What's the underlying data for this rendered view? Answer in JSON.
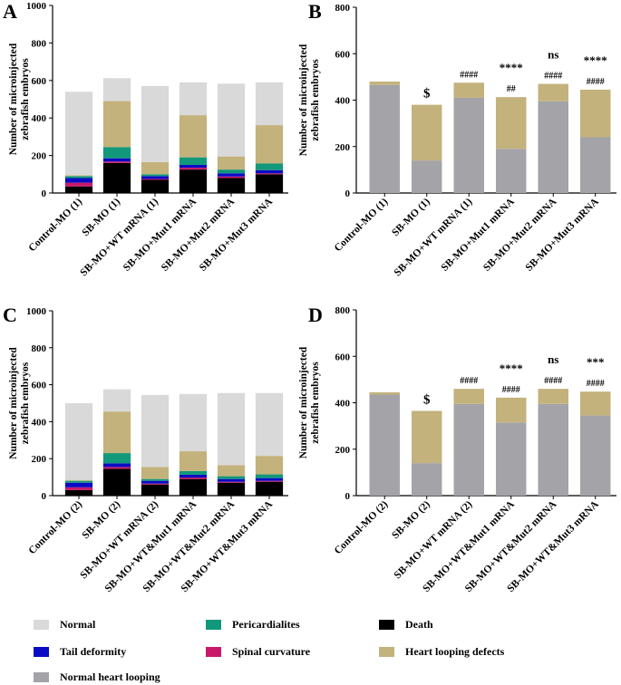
{
  "colors": {
    "normal": "#d9d9d9",
    "pericardialites": "#12987a",
    "death": "#000000",
    "tail_deformity": "#0b0bc4",
    "spinal_curvature": "#c8196a",
    "heart_looping_defects": "#c3b27c",
    "normal_heart_looping": "#a3a3a8"
  },
  "legend": {
    "normal": "Normal",
    "pericardialites": "Pericardialites",
    "death": "Death",
    "tail_deformity": "Tail deformity",
    "spinal_curvature": "Spinal curvature",
    "heart_looping_defects": "Heart looping defects",
    "normal_heart_looping": "Normal heart looping"
  },
  "chart_data": [
    {
      "panel": "A",
      "type": "bar",
      "stacked": true,
      "ylabel": "Number of microinjected zebrafish embryos",
      "ylim": [
        0,
        1000
      ],
      "yticks": [
        0,
        200,
        400,
        600,
        800,
        1000
      ],
      "categories": [
        "Control-MO (1)",
        "SB-MO (1)",
        "SB-MO+WT mRNA (1)",
        "SB-MO+Mut1 mRNA",
        "SB-MO+Mut2 mRNA",
        "SB-MO+Mut3 mRNA"
      ],
      "series": [
        {
          "name": "Death",
          "key": "death",
          "values": [
            35,
            160,
            70,
            125,
            80,
            100
          ]
        },
        {
          "name": "Spinal curvature",
          "key": "spinal_curvature",
          "values": [
            20,
            8,
            5,
            10,
            8,
            5
          ]
        },
        {
          "name": "Tail deformity",
          "key": "tail_deformity",
          "values": [
            25,
            17,
            15,
            15,
            17,
            17
          ]
        },
        {
          "name": "Pericardialites",
          "key": "pericardialites",
          "values": [
            10,
            60,
            10,
            40,
            20,
            35
          ]
        },
        {
          "name": "Heart looping defects",
          "key": "heart_looping_defects",
          "values": [
            5,
            245,
            65,
            225,
            70,
            205
          ]
        },
        {
          "name": "Normal",
          "key": "normal",
          "values": [
            445,
            122,
            405,
            175,
            388,
            228
          ]
        }
      ],
      "annotations_top": [],
      "annotations_bottom": []
    },
    {
      "panel": "B",
      "type": "bar",
      "stacked": true,
      "ylabel": "Number of microinjected zebrafish embryos",
      "ylim": [
        0,
        800
      ],
      "yticks": [
        0,
        200,
        400,
        600,
        800
      ],
      "categories": [
        "Control-MO (1)",
        "SB-MO (1)",
        "SB-MO+WT mRNA (1)",
        "SB-MO+Mut1 mRNA",
        "SB-MO+Mut2 mRNA",
        "SB-MO+Mut3 mRNA"
      ],
      "series": [
        {
          "name": "Normal heart looping",
          "key": "normal_heart_looping",
          "values": [
            465,
            140,
            410,
            190,
            395,
            240
          ]
        },
        {
          "name": "Heart looping defects",
          "key": "heart_looping_defects",
          "values": [
            15,
            240,
            65,
            223,
            75,
            205
          ]
        }
      ],
      "annotations_top": [
        "",
        "",
        "",
        "****",
        "ns",
        "****"
      ],
      "annotations_bottom": [
        "",
        "$",
        "####",
        "##",
        "####",
        "####"
      ]
    },
    {
      "panel": "C",
      "type": "bar",
      "stacked": true,
      "ylabel": "Number of microinjected zebrafish embryos",
      "ylim": [
        0,
        1000
      ],
      "yticks": [
        0,
        200,
        400,
        600,
        800,
        1000
      ],
      "categories": [
        "Control-MO (2)",
        "SB-MO (2)",
        "SB-MO+WT mRNA (2)",
        "SB-MO+WT&Mut1 mRNA",
        "SB-MO+WT&Mut2 mRNA",
        "SB-MO+WT&Mut3 mRNA"
      ],
      "series": [
        {
          "name": "Death",
          "key": "death",
          "values": [
            30,
            145,
            60,
            90,
            70,
            75
          ]
        },
        {
          "name": "Spinal curvature",
          "key": "spinal_curvature",
          "values": [
            15,
            10,
            5,
            8,
            5,
            5
          ]
        },
        {
          "name": "Tail deformity",
          "key": "tail_deformity",
          "values": [
            25,
            20,
            15,
            15,
            15,
            15
          ]
        },
        {
          "name": "Pericardialites",
          "key": "pericardialites",
          "values": [
            10,
            55,
            10,
            20,
            15,
            20
          ]
        },
        {
          "name": "Heart looping defects",
          "key": "heart_looping_defects",
          "values": [
            5,
            225,
            65,
            107,
            60,
            100
          ]
        },
        {
          "name": "Normal",
          "key": "normal",
          "values": [
            415,
            120,
            390,
            310,
            390,
            340
          ]
        }
      ],
      "annotations_top": [],
      "annotations_bottom": []
    },
    {
      "panel": "D",
      "type": "bar",
      "stacked": true,
      "ylabel": "Number of microinjected zebrafish embryos",
      "ylim": [
        0,
        800
      ],
      "yticks": [
        0,
        200,
        400,
        600,
        800
      ],
      "categories": [
        "Control-MO (2)",
        "SB-MO (2)",
        "SB-MO+WT mRNA (2)",
        "SB-MO+WT&Mut1 mRNA",
        "SB-MO+WT&Mut2 mRNA",
        "SB-MO+WT&Mut3 mRNA"
      ],
      "series": [
        {
          "name": "Normal heart looping",
          "key": "normal_heart_looping",
          "values": [
            435,
            140,
            395,
            315,
            395,
            345
          ]
        },
        {
          "name": "Heart looping defects",
          "key": "heart_looping_defects",
          "values": [
            10,
            225,
            65,
            107,
            65,
            103
          ]
        }
      ],
      "annotations_top": [
        "",
        "",
        "",
        "****",
        "ns",
        "***"
      ],
      "annotations_bottom": [
        "",
        "$",
        "####",
        "####",
        "####",
        "####"
      ]
    }
  ]
}
